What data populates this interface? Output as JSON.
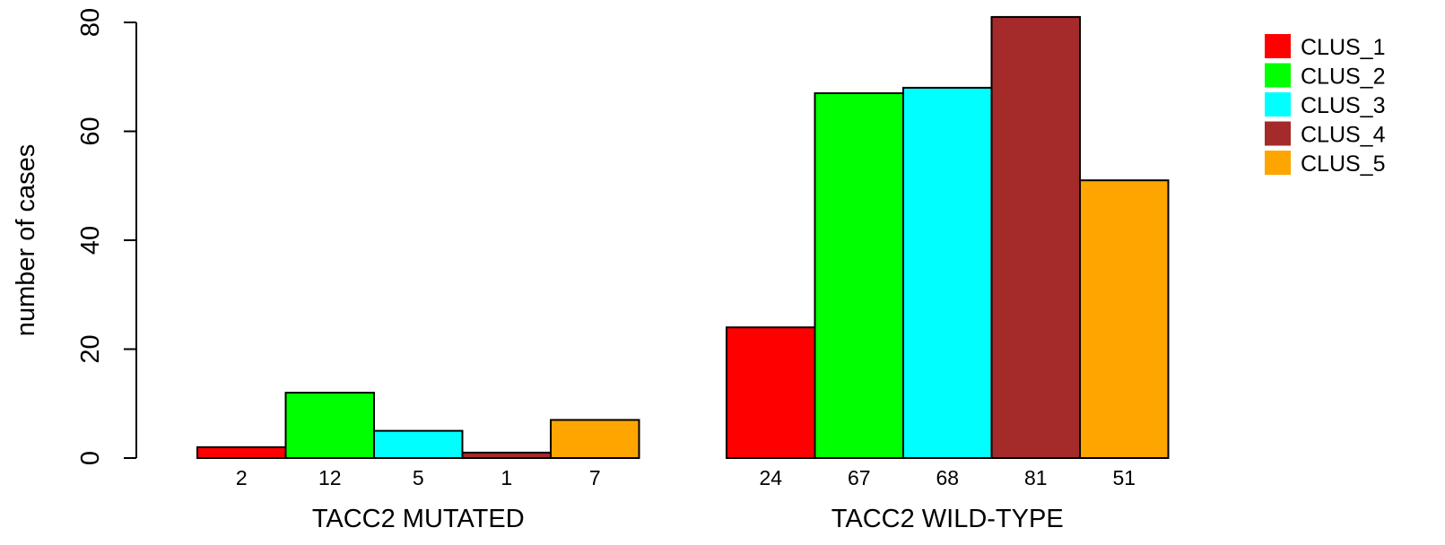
{
  "chart_data": {
    "type": "bar",
    "title": "",
    "ylabel": "number of cases",
    "ylim": [
      0,
      80
    ],
    "yticks": [
      "0",
      "20",
      "40",
      "60",
      "80"
    ],
    "groups": [
      {
        "label": "TACC2 MUTATED",
        "values": [
          2,
          12,
          5,
          1,
          7
        ],
        "value_labels": [
          "2",
          "12",
          "5",
          "1",
          "7"
        ]
      },
      {
        "label": "TACC2 WILD-TYPE",
        "values": [
          24,
          67,
          68,
          81,
          51
        ],
        "value_labels": [
          "24",
          "67",
          "68",
          "81",
          "51"
        ]
      }
    ],
    "series": [
      {
        "name": "CLUS_1",
        "color": "#ff0000"
      },
      {
        "name": "CLUS_2",
        "color": "#00ff00"
      },
      {
        "name": "CLUS_3",
        "color": "#00ffff"
      },
      {
        "name": "CLUS_4",
        "color": "#a52a2a"
      },
      {
        "name": "CLUS_5",
        "color": "#ffa500"
      }
    ],
    "legend_position": "top-right",
    "grid": false
  }
}
